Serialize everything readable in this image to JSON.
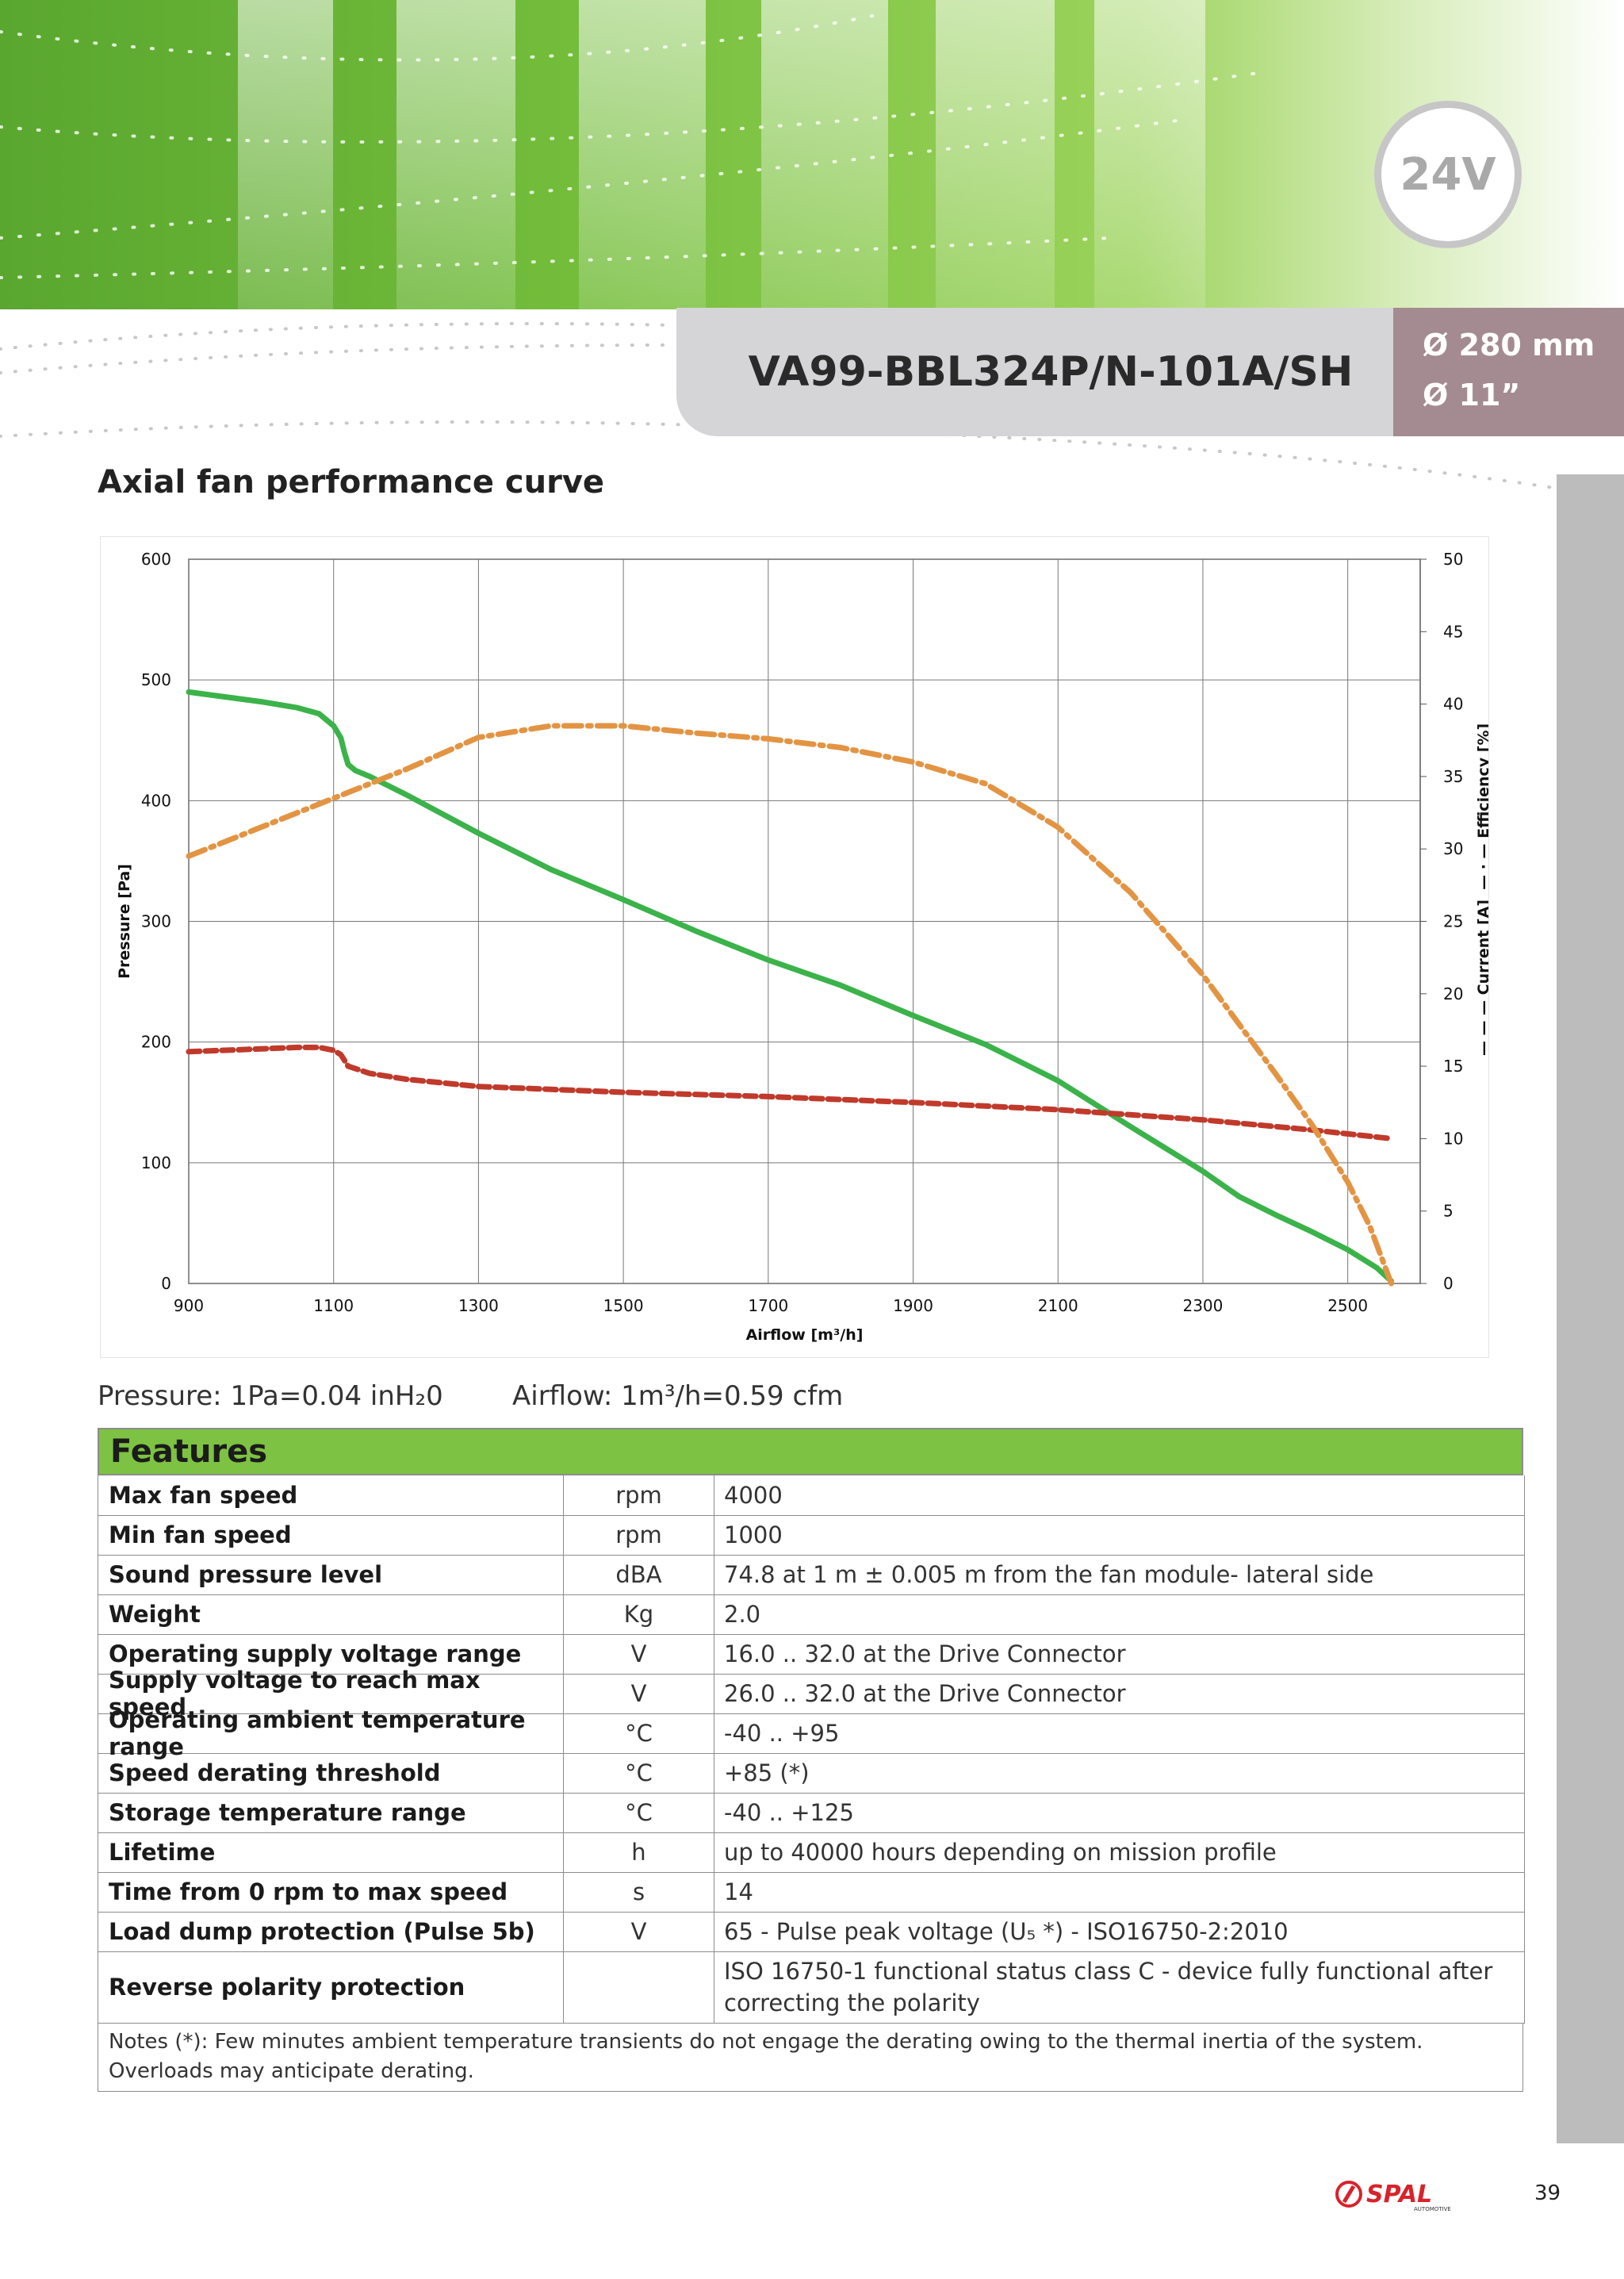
{
  "header": {
    "voltage_badge": "24V",
    "model": "VA99-BBL324P/N-101A/SH",
    "diameter_mm": "Ø 280 mm",
    "diameter_in": "Ø 11”"
  },
  "section_title": "Axial fan performance curve",
  "chart_data": {
    "type": "line",
    "title": "",
    "xlabel": "Airflow [m³/h]",
    "ylabel": "Pressure [Pa]",
    "y2label_prefix": "— — —  Current [A]",
    "y2label_suffix": "— · —  Efficiency  [%]",
    "xlim": [
      900,
      2600
    ],
    "ylim": [
      0,
      600
    ],
    "y2lim": [
      0,
      50
    ],
    "x_ticks": [
      900,
      1100,
      1300,
      1500,
      1700,
      1900,
      2100,
      2300,
      2500
    ],
    "y_ticks": [
      0,
      100,
      200,
      300,
      400,
      500,
      600
    ],
    "y2_ticks": [
      0,
      5,
      10,
      15,
      20,
      25,
      30,
      35,
      40,
      45,
      50
    ],
    "grid": true,
    "series": [
      {
        "axis": "left",
        "style": "solid",
        "color": "#3bb34a",
        "x": [
          900,
          1000,
          1050,
          1080,
          1100,
          1110,
          1115,
          1120,
          1130,
          1150,
          1200,
          1300,
          1400,
          1500,
          1600,
          1700,
          1800,
          1900,
          2000,
          2100,
          2200,
          2300,
          2350,
          2400,
          2450,
          2500,
          2540,
          2560
        ],
        "y": [
          490,
          482,
          477,
          472,
          462,
          452,
          440,
          430,
          425,
          420,
          405,
          373,
          343,
          318,
          292,
          268,
          247,
          222,
          198,
          168,
          130,
          93,
          72,
          57,
          43,
          28,
          13,
          2
        ]
      },
      {
        "axis": "right",
        "style": "dash",
        "color": "#c03a2b",
        "x": [
          900,
          1000,
          1050,
          1080,
          1100,
          1110,
          1120,
          1150,
          1200,
          1300,
          1400,
          1500,
          1700,
          1900,
          2100,
          2300,
          2450,
          2560
        ],
        "y": [
          16,
          16.2,
          16.3,
          16.3,
          16.1,
          15.8,
          15,
          14.5,
          14.1,
          13.6,
          13.4,
          13.2,
          12.9,
          12.5,
          12,
          11.3,
          10.6,
          10
        ]
      },
      {
        "axis": "right",
        "style": "dashdot",
        "color": "#e39443",
        "x": [
          900,
          1000,
          1100,
          1200,
          1300,
          1400,
          1500,
          1600,
          1700,
          1800,
          1900,
          2000,
          2100,
          2200,
          2300,
          2400,
          2450,
          2500,
          2530,
          2560
        ],
        "y": [
          29.5,
          31.5,
          33.5,
          35.5,
          37.7,
          38.5,
          38.5,
          38,
          37.6,
          37,
          36,
          34.5,
          31.5,
          27,
          21.3,
          14.5,
          11,
          7,
          4,
          0
        ]
      }
    ]
  },
  "units": {
    "pressure": "Pressure: 1Pa=0.04 inH₂0",
    "airflow": "Airflow: 1m³/h=0.59 cfm"
  },
  "features": {
    "header": "Features",
    "rows": [
      {
        "name": "Max fan speed",
        "unit": "rpm",
        "value": "4000"
      },
      {
        "name": "Min fan speed",
        "unit": "rpm",
        "value": "1000"
      },
      {
        "name": "Sound pressure level",
        "unit": "dBA",
        "value": " 74.8 at 1 m ± 0.005 m from the fan module- lateral side"
      },
      {
        "name": "Weight",
        "unit": "Kg",
        "value": "2.0"
      },
      {
        "name": "Operating supply voltage range",
        "unit": "V",
        "value": "16.0 .. 32.0 at the Drive Connector"
      },
      {
        "name": "Supply voltage to reach max speed",
        "unit": "V",
        "value": "26.0 .. 32.0 at the Drive Connector"
      },
      {
        "name": "Operating ambient temperature range",
        "unit": "°C",
        "value": "-40 .. +95"
      },
      {
        "name": "Speed derating threshold",
        "unit": "°C",
        "value": "+85 (*)"
      },
      {
        "name": "Storage temperature range",
        "unit": "°C",
        "value": "-40 .. +125"
      },
      {
        "name": "Lifetime",
        "unit": "h",
        "value": "up to 40000 hours depending on mission profile"
      },
      {
        "name": "Time from 0 rpm to max speed",
        "unit": "s",
        "value": "14"
      },
      {
        "name": "Load dump protection (Pulse 5b)",
        "unit": "V",
        "value": "65 - Pulse peak voltage (U₅ *) - ISO16750-2:2010"
      },
      {
        "name": "Reverse polarity protection",
        "unit": "",
        "value": "ISO 16750-1 functional status class C - device fully functional after correcting the polarity"
      }
    ],
    "notes": "Notes (*): Few minutes ambient temperature transients do not engage the derating owing to the thermal inertia of the system. Overloads may anticipate derating."
  },
  "footer": {
    "logo_text": "SPAL",
    "logo_subtext": "AUTOMOTIVE",
    "page_number": "39"
  },
  "colors": {
    "accent_green": "#7dc242",
    "model_box": "#d5d5d7",
    "diameter_box": "#a48b91",
    "side_bar": "#bcbcbc",
    "logo_red": "#d8232a"
  }
}
